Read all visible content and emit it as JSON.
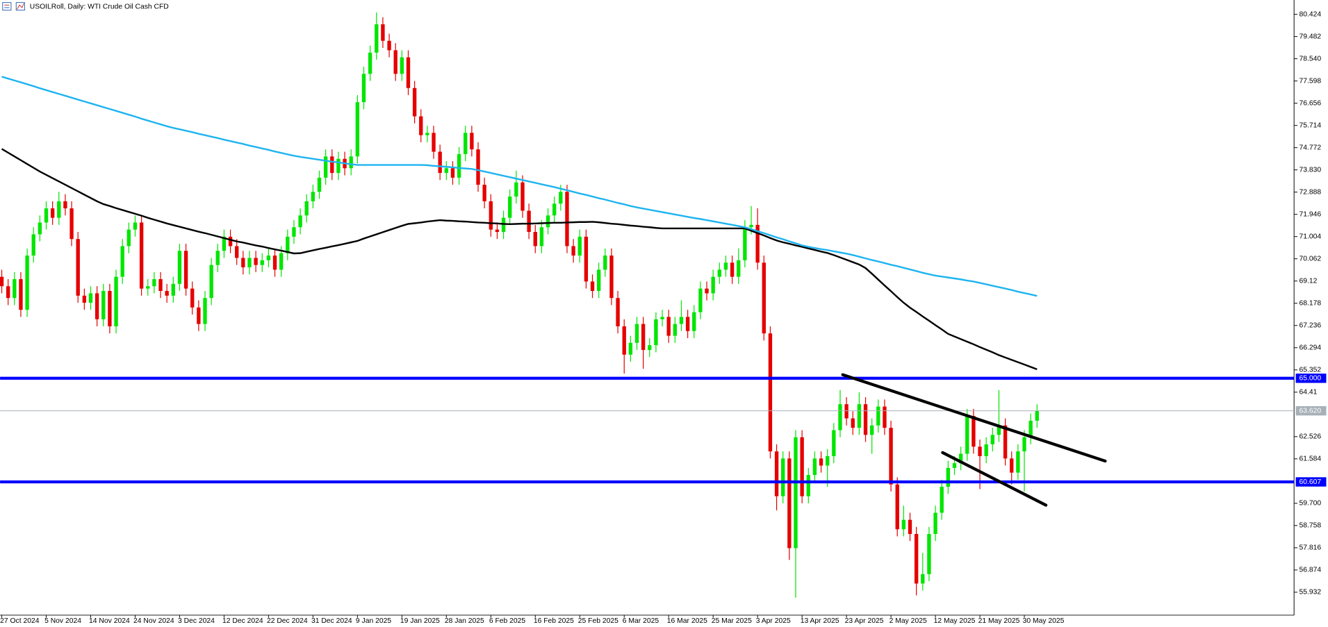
{
  "chart_data": {
    "type": "candlestick",
    "title": "USOILRoll, Daily:  WTI Crude Oil Cash CFD",
    "categories": [
      "27 Oct 2024",
      null,
      null,
      null,
      null,
      null,
      null,
      "5 Nov 2024",
      null,
      null,
      null,
      null,
      null,
      null,
      "14 Nov 2024",
      null,
      null,
      null,
      null,
      null,
      null,
      "24 Nov 2024",
      null,
      null,
      null,
      null,
      null,
      null,
      "3 Dec 2024",
      null,
      null,
      null,
      null,
      null,
      null,
      "12 Dec 2024",
      null,
      null,
      null,
      null,
      null,
      null,
      "22 Dec 2024",
      null,
      null,
      null,
      null,
      null,
      null,
      "31 Dec 2024",
      null,
      null,
      null,
      null,
      null,
      null,
      "9 Jan 2025",
      null,
      null,
      null,
      null,
      null,
      null,
      "19 Jan 2025",
      null,
      null,
      null,
      null,
      null,
      null,
      "28 Jan 2025",
      null,
      null,
      null,
      null,
      null,
      null,
      "6 Feb 2025",
      null,
      null,
      null,
      null,
      null,
      null,
      "16 Feb 2025",
      null,
      null,
      null,
      null,
      null,
      null,
      "25 Feb 2025",
      null,
      null,
      null,
      null,
      null,
      null,
      "6 Mar 2025",
      null,
      null,
      null,
      null,
      null,
      null,
      "16 Mar 2025",
      null,
      null,
      null,
      null,
      null,
      null,
      "25 Mar 2025",
      null,
      null,
      null,
      null,
      null,
      null,
      "3 Apr 2025",
      null,
      null,
      null,
      null,
      null,
      null,
      "13 Apr 2025",
      null,
      null,
      null,
      null,
      null,
      null,
      "23 Apr 2025",
      null,
      null,
      null,
      null,
      null,
      null,
      "2 May 2025",
      null,
      null,
      null,
      null,
      null,
      null,
      "12 May 2025",
      null,
      null,
      null,
      null,
      null,
      null,
      "21 May 2025",
      null,
      null,
      null,
      null,
      null,
      null,
      "30 May 2025",
      null,
      null
    ],
    "open": [
      69.3,
      68.9,
      68.4,
      69.2,
      67.9,
      70.2,
      71.1,
      71.6,
      72.2,
      71.8,
      72.5,
      72.2,
      70.9,
      68.5,
      68.2,
      68.6,
      67.5,
      68.7,
      67.2,
      69.3,
      70.6,
      71.3,
      71.6,
      68.8,
      68.9,
      69.2,
      68.7,
      68.5,
      69.0,
      70.4,
      68.8,
      68.0,
      67.3,
      68.4,
      69.8,
      70.4,
      71.0,
      70.6,
      70.1,
      69.7,
      70.1,
      69.8,
      70.0,
      70.2,
      69.6,
      70.3,
      71.0,
      71.4,
      71.9,
      72.5,
      72.9,
      73.5,
      74.4,
      73.7,
      74.3,
      73.9,
      74.4,
      76.7,
      77.9,
      78.8,
      80.0,
      79.3,
      78.9,
      77.9,
      78.6,
      77.3,
      76.1,
      75.3,
      75.4,
      74.6,
      73.7,
      73.9,
      73.5,
      74.5,
      75.4,
      74.7,
      73.2,
      72.5,
      71.3,
      71.2,
      71.8,
      72.7,
      73.3,
      72.1,
      71.2,
      70.6,
      71.4,
      71.9,
      72.4,
      72.9,
      70.6,
      70.2,
      71.0,
      69.1,
      68.7,
      69.6,
      70.2,
      68.4,
      67.2,
      66.0,
      66.5,
      67.3,
      66.2,
      66.4,
      67.5,
      67.6,
      66.8,
      67.3,
      67.6,
      67.0,
      67.8,
      68.8,
      68.6,
      69.3,
      69.6,
      69.9,
      69.3,
      70.0,
      71.4,
      71.5,
      69.9,
      66.9,
      61.9,
      60.0,
      61.6,
      57.8,
      62.5,
      60.0,
      60.9,
      61.6,
      61.3,
      61.7,
      62.8,
      63.9,
      63.3,
      62.9,
      63.9,
      62.6,
      63.0,
      63.8,
      62.9,
      60.5,
      58.6,
      59.0,
      58.4,
      56.3,
      56.7,
      58.4,
      59.3,
      60.4,
      61.2,
      61.4,
      61.8,
      63.4,
      62.1,
      61.7,
      62.2,
      62.6,
      63.0,
      61.6,
      61.0,
      61.9,
      62.5,
      63.2
    ],
    "high": [
      69.6,
      69.2,
      69.5,
      69.5,
      70.5,
      71.4,
      71.9,
      72.5,
      72.5,
      72.9,
      72.8,
      72.5,
      71.2,
      68.8,
      68.9,
      68.9,
      69.0,
      69.0,
      69.6,
      70.9,
      71.6,
      71.9,
      71.9,
      69.2,
      69.5,
      69.5,
      69.0,
      69.3,
      70.7,
      70.7,
      69.1,
      68.3,
      68.7,
      70.1,
      70.7,
      71.3,
      71.3,
      70.9,
      70.4,
      70.4,
      70.4,
      70.3,
      70.5,
      70.5,
      70.6,
      71.3,
      71.7,
      72.2,
      72.8,
      73.2,
      73.8,
      74.7,
      74.7,
      74.6,
      74.6,
      74.7,
      77.0,
      78.2,
      79.1,
      80.5,
      80.3,
      79.6,
      79.2,
      78.9,
      78.9,
      77.6,
      76.4,
      75.7,
      75.7,
      74.9,
      74.2,
      74.2,
      74.8,
      75.7,
      75.7,
      75.0,
      73.5,
      72.8,
      71.6,
      72.1,
      73.0,
      73.8,
      73.6,
      72.4,
      71.5,
      71.7,
      72.2,
      72.7,
      73.2,
      73.2,
      70.9,
      71.3,
      71.3,
      69.4,
      69.9,
      70.5,
      70.5,
      68.7,
      67.5,
      66.8,
      67.6,
      67.6,
      66.7,
      67.8,
      67.9,
      67.9,
      67.6,
      68.3,
      67.9,
      68.1,
      69.1,
      69.1,
      69.6,
      69.9,
      70.2,
      70.2,
      70.5,
      71.7,
      72.3,
      72.2,
      70.2,
      67.2,
      62.2,
      61.9,
      61.9,
      62.8,
      62.8,
      61.2,
      61.9,
      61.9,
      62.0,
      63.1,
      64.5,
      64.2,
      63.6,
      64.4,
      64.2,
      63.3,
      64.1,
      64.1,
      63.2,
      60.8,
      59.6,
      59.3,
      58.7,
      57.6,
      58.7,
      59.6,
      60.7,
      61.5,
      61.7,
      62.1,
      63.7,
      63.7,
      62.4,
      62.5,
      62.9,
      64.5,
      63.3,
      61.9,
      62.2,
      62.8,
      63.5,
      63.9
    ],
    "low": [
      68.6,
      68.1,
      68.1,
      67.6,
      67.6,
      69.9,
      70.8,
      71.3,
      71.5,
      71.5,
      71.9,
      70.6,
      68.2,
      67.9,
      67.9,
      67.2,
      67.2,
      66.9,
      66.9,
      69.0,
      70.3,
      71.0,
      68.5,
      68.5,
      68.6,
      68.4,
      68.2,
      68.2,
      68.7,
      68.5,
      67.7,
      67.0,
      67.0,
      68.1,
      69.5,
      70.1,
      70.3,
      69.8,
      69.4,
      69.4,
      69.5,
      69.5,
      69.7,
      69.3,
      69.3,
      70.0,
      70.7,
      71.1,
      71.6,
      72.2,
      72.6,
      73.2,
      73.4,
      73.4,
      73.6,
      73.6,
      74.1,
      76.4,
      77.6,
      78.5,
      79.0,
      78.6,
      77.6,
      77.6,
      77.0,
      75.8,
      75.0,
      75.0,
      74.3,
      73.4,
      73.4,
      73.2,
      73.2,
      74.2,
      74.4,
      72.9,
      72.2,
      71.0,
      70.9,
      70.9,
      71.5,
      72.4,
      71.8,
      70.9,
      70.3,
      70.3,
      71.1,
      71.6,
      72.1,
      70.3,
      69.9,
      69.9,
      68.8,
      68.4,
      68.4,
      69.3,
      68.1,
      66.9,
      65.2,
      65.7,
      66.2,
      65.4,
      65.9,
      66.1,
      67.2,
      66.5,
      66.5,
      67.0,
      66.7,
      66.7,
      67.5,
      68.3,
      68.3,
      69.0,
      69.3,
      69.0,
      69.0,
      69.7,
      71.1,
      69.6,
      66.6,
      61.6,
      59.4,
      59.7,
      57.3,
      55.7,
      59.7,
      59.7,
      60.6,
      61.0,
      60.4,
      61.4,
      62.5,
      63.0,
      62.6,
      62.6,
      62.3,
      61.8,
      62.7,
      62.6,
      60.2,
      58.3,
      58.3,
      58.1,
      55.8,
      56.0,
      56.4,
      58.1,
      59.0,
      60.1,
      60.9,
      61.1,
      61.5,
      61.8,
      60.3,
      61.4,
      61.9,
      62.3,
      61.3,
      60.5,
      60.7,
      60.2,
      62.2,
      62.9
    ],
    "close": [
      68.9,
      68.4,
      69.2,
      67.9,
      70.2,
      71.1,
      71.6,
      72.2,
      71.8,
      72.5,
      72.2,
      70.9,
      68.5,
      68.2,
      68.6,
      67.5,
      68.7,
      67.2,
      69.3,
      70.6,
      71.3,
      71.6,
      68.8,
      68.9,
      69.2,
      68.7,
      68.5,
      69.0,
      70.4,
      68.8,
      68.0,
      67.3,
      68.4,
      69.8,
      70.4,
      71.0,
      70.6,
      70.1,
      69.7,
      70.1,
      69.8,
      70.0,
      70.2,
      69.6,
      70.3,
      71.0,
      71.4,
      71.9,
      72.5,
      72.9,
      73.5,
      74.4,
      73.7,
      74.3,
      73.9,
      74.4,
      76.7,
      77.9,
      78.8,
      80.0,
      79.3,
      78.9,
      77.9,
      78.6,
      77.3,
      76.1,
      75.3,
      75.4,
      74.6,
      73.7,
      73.9,
      73.5,
      74.5,
      75.4,
      74.7,
      73.2,
      72.5,
      71.3,
      71.2,
      71.8,
      72.7,
      73.3,
      72.1,
      71.2,
      70.6,
      71.4,
      71.9,
      72.4,
      72.9,
      70.6,
      70.2,
      71.0,
      69.1,
      68.7,
      69.6,
      70.2,
      68.4,
      67.2,
      66.0,
      66.5,
      67.3,
      66.2,
      66.4,
      67.5,
      67.6,
      66.8,
      67.3,
      67.6,
      67.0,
      67.8,
      68.8,
      68.6,
      69.3,
      69.6,
      69.9,
      69.3,
      70.0,
      71.4,
      71.5,
      69.9,
      66.9,
      61.9,
      60.0,
      61.6,
      57.8,
      62.5,
      60.0,
      60.9,
      61.6,
      61.3,
      61.7,
      62.8,
      63.9,
      63.3,
      62.9,
      63.9,
      62.6,
      63.0,
      63.8,
      62.9,
      60.5,
      58.6,
      59.0,
      58.4,
      56.3,
      56.7,
      58.4,
      59.3,
      60.4,
      61.2,
      61.4,
      61.8,
      63.4,
      62.1,
      61.7,
      62.2,
      62.6,
      63.0,
      61.6,
      61.0,
      61.9,
      62.5,
      63.2,
      63.62
    ],
    "up_color": "#00e600",
    "down_color": "#e60000",
    "overlays": [
      {
        "color": "#000000",
        "values": [
          74.72,
          74.56,
          74.4,
          74.24,
          74.08,
          73.92,
          73.76,
          73.62,
          73.48,
          73.34,
          73.2,
          73.06,
          72.92,
          72.78,
          72.64,
          72.5,
          72.38,
          72.3,
          72.21,
          72.13,
          72.05,
          71.97,
          71.89,
          71.8,
          71.72,
          71.64,
          71.56,
          71.49,
          71.42,
          71.35,
          71.28,
          71.21,
          71.15,
          71.08,
          71.01,
          70.94,
          70.87,
          70.8,
          70.75,
          70.69,
          70.63,
          70.58,
          70.52,
          70.46,
          70.41,
          70.35,
          70.29,
          70.3,
          70.36,
          70.42,
          70.48,
          70.53,
          70.59,
          70.64,
          70.7,
          70.76,
          70.82,
          70.92,
          71.01,
          71.1,
          71.19,
          71.28,
          71.37,
          71.46,
          71.54,
          71.57,
          71.6,
          71.64,
          71.67,
          71.7,
          71.68,
          71.67,
          71.65,
          71.64,
          71.62,
          71.6,
          71.59,
          71.57,
          71.56,
          71.54,
          71.53,
          71.54,
          71.55,
          71.55,
          71.56,
          71.57,
          71.58,
          71.59,
          71.59,
          71.6,
          71.61,
          71.62,
          71.62,
          71.63,
          71.61,
          71.58,
          71.55,
          71.53,
          71.5,
          71.47,
          71.45,
          71.42,
          71.4,
          71.37,
          71.35,
          71.35,
          71.35,
          71.35,
          71.35,
          71.35,
          71.35,
          71.35,
          71.35,
          71.35,
          71.35,
          71.35,
          71.35,
          71.35,
          71.25,
          71.15,
          71.05,
          70.94,
          70.84,
          70.76,
          70.7,
          70.63,
          70.57,
          70.5,
          70.44,
          70.37,
          70.31,
          70.22,
          70.12,
          70.02,
          69.92,
          69.82,
          69.67,
          69.43,
          69.18,
          68.93,
          68.69,
          68.44,
          68.2,
          67.99,
          67.81,
          67.62,
          67.44,
          67.25,
          67.07,
          66.88,
          66.77,
          66.66,
          66.55,
          66.44,
          66.32,
          66.21,
          66.1,
          65.98,
          65.88,
          65.78,
          65.68,
          65.58,
          65.48,
          65.38
        ]
      },
      {
        "color": "#1eb4f0",
        "values": [
          77.78,
          77.7,
          77.62,
          77.54,
          77.46,
          77.38,
          77.29,
          77.21,
          77.13,
          77.05,
          76.97,
          76.89,
          76.81,
          76.73,
          76.65,
          76.57,
          76.49,
          76.41,
          76.33,
          76.25,
          76.17,
          76.09,
          76.0,
          75.92,
          75.84,
          75.76,
          75.68,
          75.61,
          75.55,
          75.49,
          75.43,
          75.36,
          75.3,
          75.24,
          75.18,
          75.11,
          75.05,
          74.99,
          74.93,
          74.86,
          74.8,
          74.74,
          74.68,
          74.61,
          74.55,
          74.49,
          74.43,
          74.38,
          74.34,
          74.3,
          74.26,
          74.22,
          74.18,
          74.15,
          74.11,
          74.07,
          74.04,
          74.04,
          74.04,
          74.04,
          74.04,
          74.04,
          74.04,
          74.04,
          74.04,
          74.04,
          74.04,
          74.03,
          74.0,
          73.98,
          73.96,
          73.94,
          73.91,
          73.89,
          73.87,
          73.82,
          73.76,
          73.7,
          73.64,
          73.58,
          73.52,
          73.46,
          73.4,
          73.34,
          73.28,
          73.22,
          73.16,
          73.1,
          73.03,
          72.97,
          72.9,
          72.83,
          72.77,
          72.7,
          72.63,
          72.57,
          72.5,
          72.43,
          72.37,
          72.3,
          72.24,
          72.19,
          72.14,
          72.09,
          72.04,
          71.99,
          71.94,
          71.89,
          71.84,
          71.79,
          71.75,
          71.7,
          71.65,
          71.6,
          71.55,
          71.5,
          71.45,
          71.4,
          71.32,
          71.23,
          71.15,
          71.06,
          70.97,
          70.89,
          70.8,
          70.72,
          70.63,
          70.57,
          70.52,
          70.47,
          70.43,
          70.38,
          70.33,
          70.28,
          70.22,
          70.15,
          70.08,
          70.01,
          69.95,
          69.88,
          69.81,
          69.75,
          69.68,
          69.61,
          69.54,
          69.47,
          69.41,
          69.35,
          69.31,
          69.27,
          69.23,
          69.19,
          69.14,
          69.1,
          69.04,
          68.98,
          68.92,
          68.86,
          68.8,
          68.74,
          68.67,
          68.61,
          68.55,
          68.49
        ]
      }
    ],
    "levels": [
      {
        "value": 65,
        "label": "65.000",
        "color": "#0000ff"
      },
      {
        "value": 60.607,
        "label": "60.607",
        "color": "#0000ff"
      }
    ],
    "last_price": {
      "value": 63.62,
      "label": "63.620",
      "color": "#a8b0b8"
    },
    "trendlines": [
      {
        "start": 65.15,
        "end": 61.49,
        "color": "#000000"
      },
      {
        "start": 61.85,
        "end": 59.62,
        "color": "#000000"
      }
    ],
    "ylim": [
      54.96,
      81.03
    ],
    "yticks": [
      80.424,
      79.482,
      {
        "value": 78.54,
        "label": "78.540"
      },
      77.598,
      76.656,
      75.714,
      74.772,
      {
        "value": 73.83,
        "label": "73.830"
      },
      72.888,
      71.946,
      71.004,
      70.062,
      69.12,
      68.178,
      67.236,
      66.294,
      65.352,
      64.41,
      62.526,
      61.584,
      {
        "value": 59.7,
        "label": "59.700"
      },
      58.758,
      57.816,
      56.874,
      55.932
    ]
  }
}
